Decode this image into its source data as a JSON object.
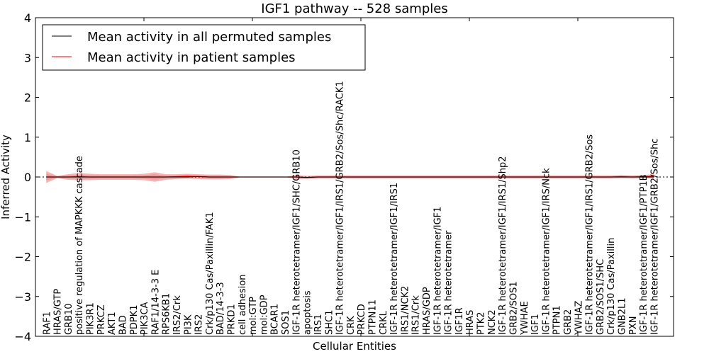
{
  "chart_data": {
    "type": "line",
    "title": "IGF1 pathway -- 528 samples",
    "xlabel": "Cellular Entities",
    "ylabel": "Inferred Activity",
    "ylim": [
      -4,
      4
    ],
    "xlim": [
      0,
      58.8
    ],
    "yticks": [
      -4,
      -3,
      -2,
      -1,
      0,
      1,
      2,
      3,
      4
    ],
    "ytick_labels": [
      "−4",
      "−3",
      "−2",
      "−1",
      "0",
      "1",
      "2",
      "3",
      "4"
    ],
    "xticks": [
      10,
      20,
      30,
      40,
      50
    ],
    "grid": false,
    "legend": {
      "placement": "top-left",
      "entries": [
        {
          "label": "Mean activity in all permuted samples",
          "color": "#000000"
        },
        {
          "label": "Mean activity in patient samples",
          "color": "#ff0000"
        }
      ]
    },
    "categories": [
      "RAF1",
      "HRAS/GTP",
      "GRB10",
      "positive regulation of MAPKKK cascade",
      "PIK3R1",
      "PRKCZ",
      "AKT1",
      "BAD",
      "PDPK1",
      "PIK3CA",
      "RAF1/14-3-3 E",
      "RPS6KB1",
      "IRS2/Crk",
      "PI3K",
      "IRS2",
      "Crk/p130 Cas/Paxillin/FAK1",
      "BAD/14-3-3",
      "PRKD1",
      "cell adhesion",
      "mol:GTP",
      "mol:GDP",
      "BCAR1",
      "SOS1",
      "IGF-1R heterotetramer/IGF1/SHC/GRB10",
      "apoptosis",
      "IRS1",
      "SHC1",
      "IGF-1R heterotetramer/IGF1/IRS1/GRB2/Sos/Shc/RACK1",
      "CRK",
      "PRKCD",
      "PTPN11",
      "CRKL",
      "IGF-1R heterotetramer/IGF1/IRS1",
      "IRS1/NCK2",
      "IRS1/Crk",
      "HRAS/GDP",
      "IGF-1R heterotetramer/IGF1",
      "IGF-1R heterotetramer",
      "IGF1R",
      "HRAS",
      "PTK2",
      "NCK2",
      "IGF-1R heterotetramer/IGF1/IRS1/Shp2",
      "GRB2/SOS1",
      "YWHAE",
      "IGF1",
      "IGF-1R heterotetramer/IGF1/IRS/Nck",
      "PTPN1",
      "GRB2",
      "YWHAZ",
      "IGF-1R heterotetramer/IGF1/IRS1/GRB2/Sos",
      "GRB2/SOS1/SHC",
      "Crk/p130 Cas/Paxillin",
      "GNB2L1",
      "PXN",
      "IGF-1R heterotetramer/IGF1/PTP1B",
      "IGF-1R heterotetramer/IGF1/GRB2/Sos/Shc"
    ],
    "series": [
      {
        "name": "Mean activity in all permuted samples",
        "color": "#000000",
        "values": [
          0,
          0,
          0,
          0,
          0,
          0,
          0,
          0,
          0,
          0,
          0,
          0,
          0,
          0,
          0.01,
          0,
          0,
          0,
          0,
          0,
          0,
          0,
          0,
          0,
          -0.01,
          0,
          0,
          0,
          0,
          0,
          0,
          0,
          0,
          0,
          0,
          0,
          0,
          0,
          0,
          0,
          0,
          0,
          0,
          0,
          0,
          0,
          0,
          0,
          0,
          0,
          0,
          0,
          0,
          0,
          0,
          0,
          0
        ]
      },
      {
        "name": "Mean activity in patient samples",
        "color": "#ff0000",
        "values": [
          0,
          0,
          0,
          0.01,
          0,
          0,
          0,
          0,
          0,
          0,
          0,
          0,
          0.01,
          0.02,
          0.01,
          0,
          0,
          0,
          0,
          0,
          0,
          0,
          0,
          0,
          -0.01,
          0,
          0,
          0,
          0,
          0,
          0,
          0,
          0,
          0,
          0,
          0,
          0,
          0,
          0,
          0,
          0,
          0,
          0,
          0,
          0,
          0,
          0,
          0,
          0,
          0,
          0,
          0,
          0,
          0.01,
          0,
          0.01,
          0.02
        ],
        "band": [
          0.15,
          0.03,
          0.07,
          0.09,
          0.08,
          0.07,
          0.07,
          0.07,
          0.07,
          0.08,
          0.12,
          0.07,
          0.06,
          0.06,
          0.06,
          0.06,
          0.06,
          0.05,
          0,
          0,
          0,
          0,
          0,
          0.05,
          0.04,
          0.04,
          0.04,
          0.04,
          0.04,
          0.04,
          0.04,
          0.04,
          0.04,
          0.04,
          0.04,
          0.04,
          0.04,
          0.04,
          0.04,
          0.04,
          0.04,
          0.04,
          0.04,
          0.04,
          0.04,
          0.04,
          0.04,
          0.04,
          0.04,
          0.04,
          0.04,
          0.04,
          0.04,
          0.04,
          0.04,
          0.04,
          0.05
        ]
      }
    ]
  }
}
